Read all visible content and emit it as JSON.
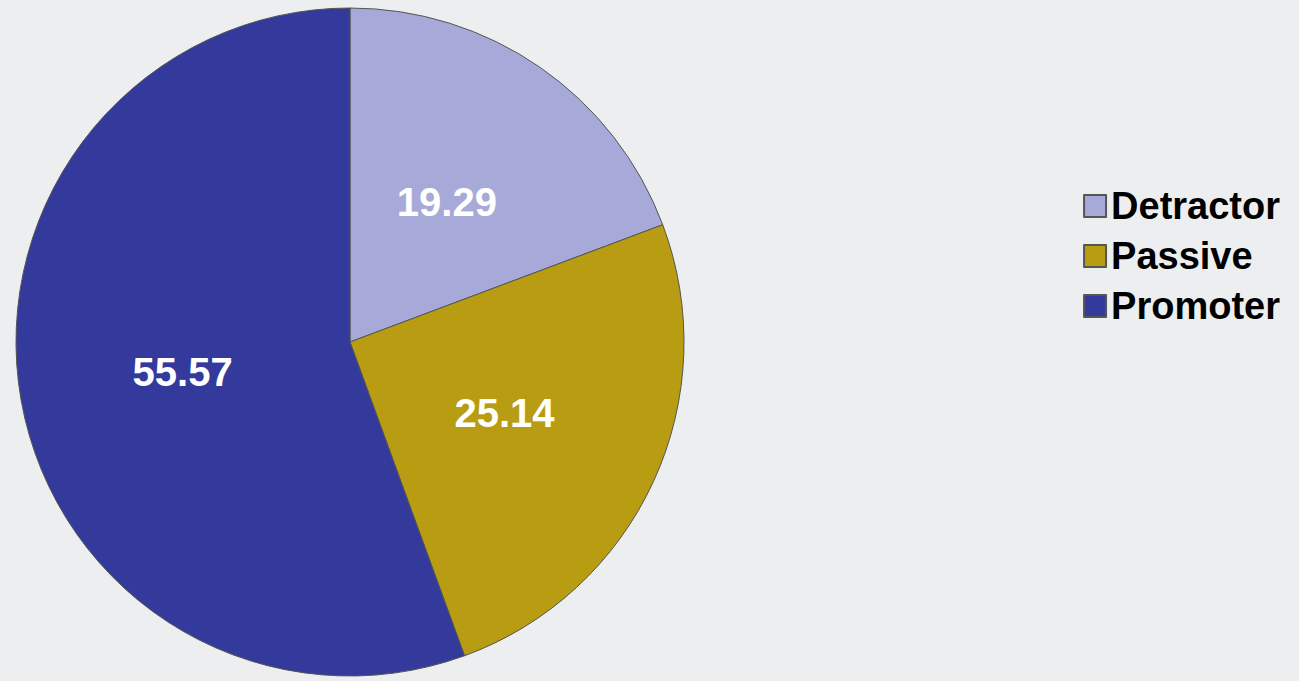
{
  "chart_data": {
    "type": "pie",
    "categories": [
      "Detractor",
      "Passive",
      "Promoter"
    ],
    "values": [
      19.29,
      25.14,
      55.57
    ],
    "colors": [
      "#a7a9d8",
      "#b89c12",
      "#333a9c"
    ],
    "data_labels": true,
    "legend": "right"
  }
}
